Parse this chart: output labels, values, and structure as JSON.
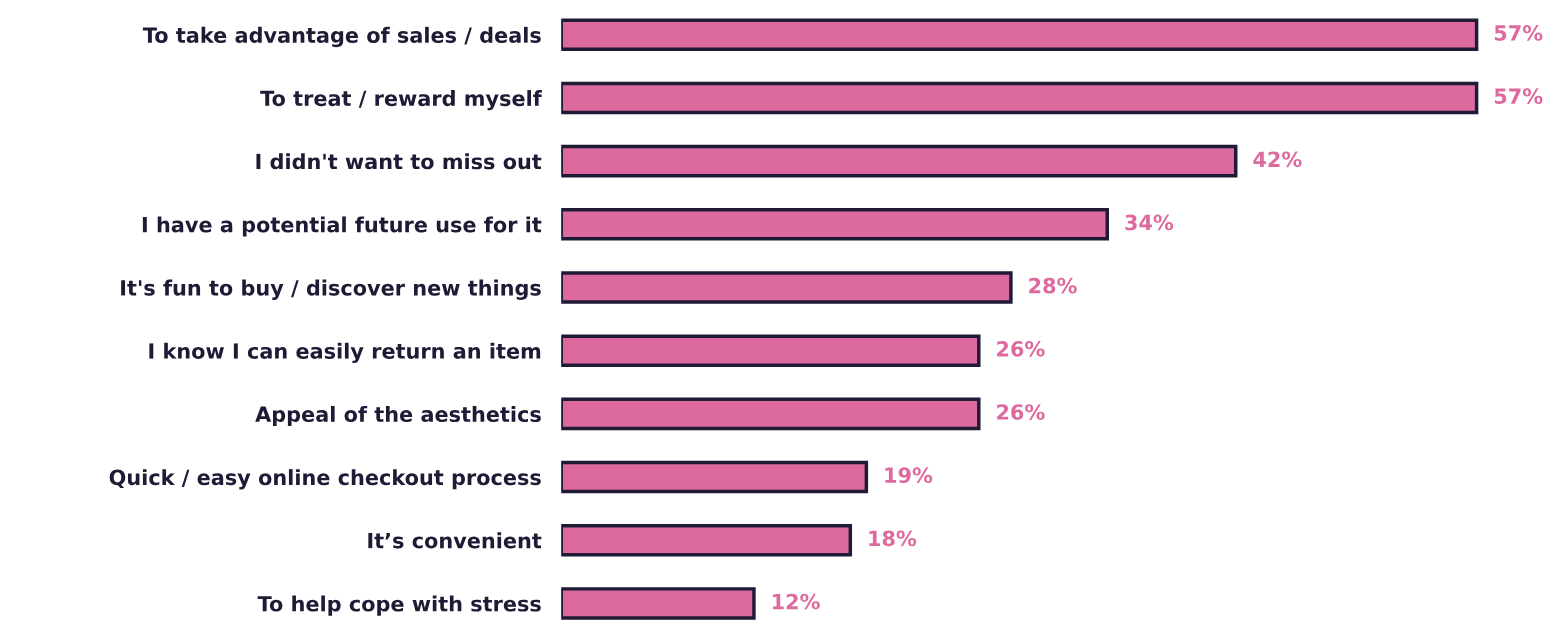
{
  "chart_data": {
    "type": "bar",
    "orientation": "horizontal",
    "categories": [
      "To take advantage of sales / deals",
      "To treat / reward myself",
      "I didn't want to miss out",
      "I have a potential future use for it",
      "It's fun to buy / discover new things",
      "I know I can easily return an item",
      "Appeal of the aesthetics",
      "Quick / easy online checkout process",
      "It’s convenient",
      "To help cope with stress"
    ],
    "values": [
      57,
      57,
      42,
      34,
      28,
      26,
      26,
      19,
      18,
      12
    ],
    "value_labels": [
      "57%",
      "57%",
      "42%",
      "34%",
      "28%",
      "26%",
      "26%",
      "19%",
      "18%",
      "12%"
    ],
    "color": "#dd6a9f",
    "grid": false,
    "legend": false
  }
}
